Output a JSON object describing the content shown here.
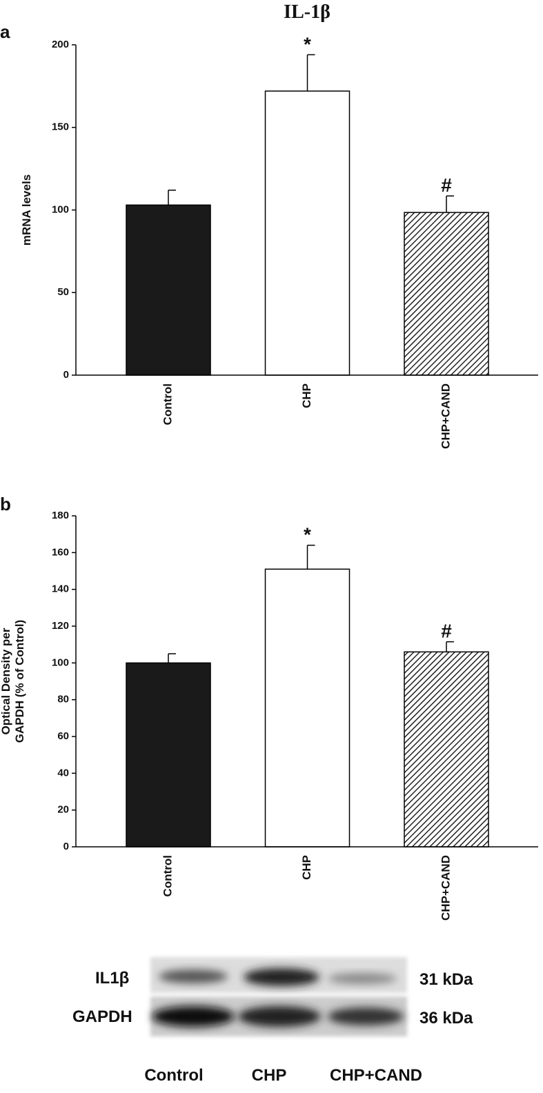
{
  "chart_data": [
    {
      "type": "bar",
      "panel_label": "a",
      "title": "IL-1β",
      "ylabel": [
        "mRNA levels"
      ],
      "categories": [
        "Control",
        "CHP",
        "CHP+CAND"
      ],
      "values": [
        103,
        172,
        98.5
      ],
      "errors": [
        9,
        22,
        10
      ],
      "annotations": [
        null,
        "*",
        "#"
      ],
      "fills": [
        "#1a1a1a",
        "#ffffff",
        "hatch"
      ],
      "ylim": [
        0,
        200
      ],
      "yticks": [
        0,
        50,
        100,
        150,
        200
      ]
    },
    {
      "type": "bar",
      "panel_label": "b",
      "ylabel": [
        "Optical Density per",
        "GAPDH (% of Control)"
      ],
      "categories": [
        "Control",
        "CHP",
        "CHP+CAND"
      ],
      "values": [
        100,
        151,
        106
      ],
      "errors": [
        5,
        13,
        5.5
      ],
      "annotations": [
        null,
        "*",
        "#"
      ],
      "fills": [
        "#1a1a1a",
        "#ffffff",
        "hatch"
      ],
      "ylim": [
        0,
        180
      ],
      "yticks": [
        0,
        20,
        40,
        60,
        80,
        100,
        120,
        140,
        160,
        180
      ]
    }
  ],
  "blot": {
    "rows": [
      "IL1β",
      "GAPDH"
    ],
    "sizes": [
      "31 kDa",
      "36 kDa"
    ],
    "lanes": [
      "Control",
      "CHP",
      "CHP+CAND"
    ]
  }
}
